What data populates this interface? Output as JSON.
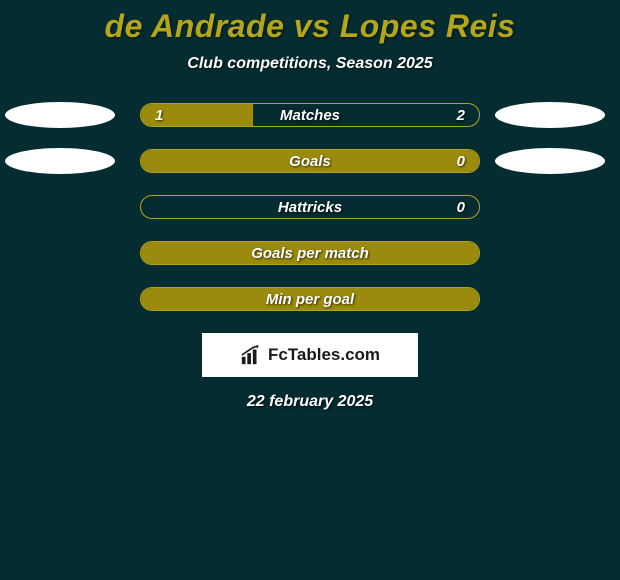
{
  "title": "de Andrade vs Lopes Reis",
  "subtitle": "Club competitions, Season 2025",
  "date": "22 february 2025",
  "logo_text": "FcTables.com",
  "colors": {
    "background": "#052c30",
    "title": "#b5a518",
    "text": "#ffffff",
    "bar_left": "#9a8b0e",
    "bar_right": "#052c30",
    "bar_full": "#9a8b0e",
    "bar_border": "#b5a518",
    "ellipse": "#ffffff",
    "logo_bg": "#ffffff",
    "logo_text": "#1a1a1a"
  },
  "stats": [
    {
      "label": "Matches",
      "left_val": "1",
      "right_val": "2",
      "left_pct": 33,
      "right_pct": 67,
      "show_ellipses": true,
      "mode": "split"
    },
    {
      "label": "Goals",
      "left_val": "",
      "right_val": "0",
      "left_pct": 100,
      "right_pct": 0,
      "show_ellipses": true,
      "mode": "left_full"
    },
    {
      "label": "Hattricks",
      "left_val": "",
      "right_val": "0",
      "left_pct": 0,
      "right_pct": 0,
      "show_ellipses": false,
      "mode": "empty"
    },
    {
      "label": "Goals per match",
      "left_val": "",
      "right_val": "",
      "left_pct": 100,
      "right_pct": 0,
      "show_ellipses": false,
      "mode": "full"
    },
    {
      "label": "Min per goal",
      "left_val": "",
      "right_val": "",
      "left_pct": 100,
      "right_pct": 0,
      "show_ellipses": false,
      "mode": "full"
    }
  ]
}
